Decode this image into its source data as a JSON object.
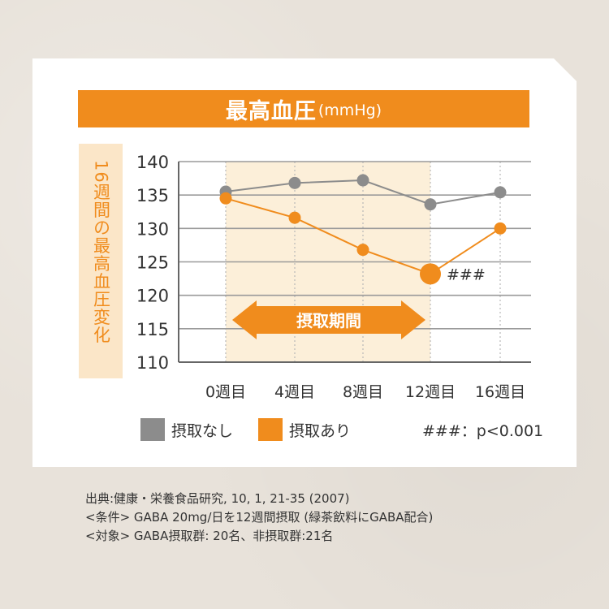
{
  "title": {
    "main": "最高血圧",
    "unit": "(mmHg)"
  },
  "yaxis_label": "16週間の最高血圧変化",
  "intake_period_label": "摂取期間",
  "significance_marker": "###",
  "significance_note": "###：p<0.001",
  "legend": [
    {
      "label": "摂取なし",
      "color": "#8c8c8c"
    },
    {
      "label": "摂取あり",
      "color": "#f08c1d"
    }
  ],
  "colors": {
    "accent": "#f08c1d",
    "control": "#8c8c8c",
    "highlight_band": "#fcefd9"
  },
  "chart_data": {
    "type": "line",
    "categories": [
      "0週目",
      "4週目",
      "8週目",
      "12週目",
      "16週目"
    ],
    "y_ticks": [
      140,
      135,
      130,
      125,
      120,
      115,
      110
    ],
    "ylim": [
      110,
      140
    ],
    "grid": true,
    "highlight_range": [
      "0週目",
      "12週目"
    ],
    "series": [
      {
        "name": "摂取なし",
        "values": [
          135.5,
          136.8,
          137.2,
          133.6,
          135.4
        ]
      },
      {
        "name": "摂取あり",
        "values": [
          134.5,
          131.6,
          126.8,
          123.2,
          130.0
        ]
      }
    ],
    "annotations": [
      {
        "category": "12週目",
        "series": "摂取あり",
        "text": "###"
      }
    ]
  },
  "notes": [
    "出典:健康・栄養食品研究, 10, 1, 21-35 (2007)",
    "<条件> GABA 20mg/日を12週間摂取 (緑茶飲料にGABA配合)",
    "<対象> GABA摂取群: 20名、非摂取群:21名"
  ]
}
